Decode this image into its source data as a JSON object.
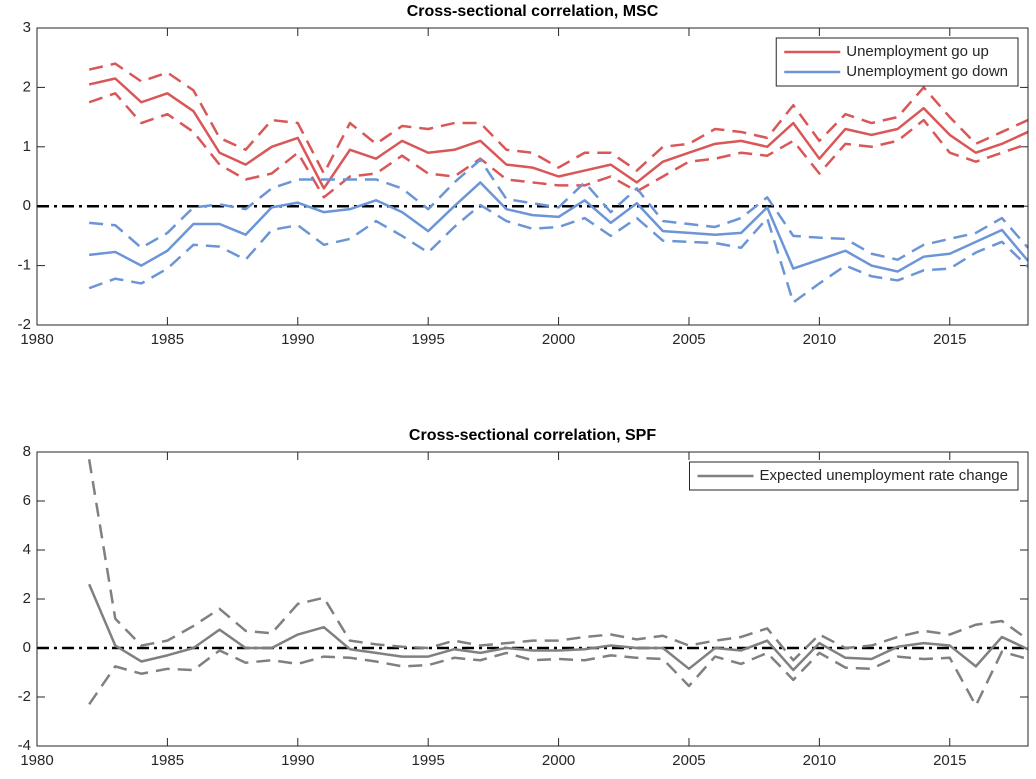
{
  "chart_data": [
    {
      "type": "line",
      "title": "Cross-sectional correlation, MSC",
      "x": [
        1982,
        1983,
        1984,
        1985,
        1986,
        1987,
        1988,
        1989,
        1990,
        1991,
        1992,
        1993,
        1994,
        1995,
        1996,
        1997,
        1998,
        1999,
        2000,
        2001,
        2002,
        2003,
        2004,
        2005,
        2006,
        2007,
        2008,
        2009,
        2010,
        2011,
        2012,
        2013,
        2014,
        2015,
        2016,
        2017,
        2018
      ],
      "xlim": [
        1980,
        2018
      ],
      "xticks": [
        1980,
        1985,
        1990,
        1995,
        2000,
        2005,
        2010,
        2015
      ],
      "ylim": [
        -2,
        3
      ],
      "yticks": [
        -2,
        -1,
        0,
        1,
        2,
        3
      ],
      "reference_line": {
        "value": 0,
        "color": "#000000",
        "style": "dashdot"
      },
      "legend": "top-right",
      "series": [
        {
          "name": "Unemployment go up",
          "color": "#d95757",
          "style": "solid",
          "values": [
            2.05,
            2.15,
            1.75,
            1.9,
            1.6,
            0.9,
            0.7,
            1.0,
            1.15,
            0.3,
            0.95,
            0.8,
            1.1,
            0.9,
            0.95,
            1.1,
            0.7,
            0.65,
            0.5,
            0.6,
            0.7,
            0.4,
            0.75,
            0.9,
            1.05,
            1.1,
            1.0,
            1.4,
            0.8,
            1.3,
            1.2,
            1.3,
            1.65,
            1.2,
            0.9,
            1.05,
            1.25
          ]
        },
        {
          "color": "#d95757",
          "style": "dashed",
          "values": [
            2.3,
            2.4,
            2.1,
            2.25,
            1.95,
            1.15,
            0.95,
            1.45,
            1.4,
            0.55,
            1.4,
            1.05,
            1.35,
            1.3,
            1.4,
            1.4,
            0.95,
            0.9,
            0.65,
            0.9,
            0.9,
            0.6,
            1.0,
            1.05,
            1.3,
            1.25,
            1.15,
            1.7,
            1.1,
            1.55,
            1.4,
            1.5,
            2.0,
            1.5,
            1.05,
            1.25,
            1.45
          ]
        },
        {
          "color": "#d95757",
          "style": "dashed",
          "values": [
            1.75,
            1.9,
            1.4,
            1.55,
            1.25,
            0.7,
            0.45,
            0.55,
            0.9,
            0.15,
            0.5,
            0.55,
            0.85,
            0.55,
            0.5,
            0.8,
            0.45,
            0.4,
            0.35,
            0.35,
            0.5,
            0.25,
            0.5,
            0.75,
            0.8,
            0.9,
            0.85,
            1.1,
            0.55,
            1.05,
            1.0,
            1.1,
            1.45,
            0.9,
            0.75,
            0.9,
            1.05
          ]
        },
        {
          "name": "Unemployment go down",
          "color": "#6b95d6",
          "style": "solid",
          "values": [
            -0.82,
            -0.77,
            -1.0,
            -0.75,
            -0.3,
            -0.3,
            -0.48,
            -0.02,
            0.06,
            -0.1,
            -0.05,
            0.1,
            -0.1,
            -0.42,
            0.0,
            0.4,
            -0.05,
            -0.15,
            -0.18,
            0.1,
            -0.28,
            0.05,
            -0.42,
            -0.45,
            -0.48,
            -0.45,
            -0.02,
            -1.05,
            -0.9,
            -0.75,
            -1.0,
            -1.1,
            -0.85,
            -0.8,
            -0.6,
            -0.4,
            -0.92
          ]
        },
        {
          "color": "#6b95d6",
          "style": "dashed",
          "values": [
            -0.28,
            -0.32,
            -0.7,
            -0.45,
            -0.02,
            0.03,
            -0.05,
            0.3,
            0.45,
            0.45,
            0.45,
            0.45,
            0.3,
            -0.05,
            0.4,
            0.78,
            0.12,
            0.05,
            -0.02,
            0.4,
            -0.1,
            0.3,
            -0.25,
            -0.3,
            -0.35,
            -0.2,
            0.15,
            -0.5,
            -0.53,
            -0.55,
            -0.8,
            -0.9,
            -0.65,
            -0.55,
            -0.45,
            -0.2,
            -0.7
          ]
        },
        {
          "color": "#6b95d6",
          "style": "dashed",
          "values": [
            -1.38,
            -1.22,
            -1.3,
            -1.05,
            -0.65,
            -0.68,
            -0.9,
            -0.4,
            -0.32,
            -0.65,
            -0.55,
            -0.25,
            -0.5,
            -0.78,
            -0.35,
            0.02,
            -0.25,
            -0.38,
            -0.35,
            -0.2,
            -0.5,
            -0.2,
            -0.58,
            -0.6,
            -0.62,
            -0.7,
            -0.2,
            -1.62,
            -1.3,
            -1.0,
            -1.18,
            -1.25,
            -1.08,
            -1.05,
            -0.78,
            -0.6,
            -1.02
          ]
        }
      ]
    },
    {
      "type": "line",
      "title": "Cross-sectional correlation, SPF",
      "x": [
        1982,
        1983,
        1984,
        1985,
        1986,
        1987,
        1988,
        1989,
        1990,
        1991,
        1992,
        1993,
        1994,
        1995,
        1996,
        1997,
        1998,
        1999,
        2000,
        2001,
        2002,
        2003,
        2004,
        2005,
        2006,
        2007,
        2008,
        2009,
        2010,
        2011,
        2012,
        2013,
        2014,
        2015,
        2016,
        2017,
        2018
      ],
      "xlim": [
        1980,
        2018
      ],
      "xticks": [
        1980,
        1985,
        1990,
        1995,
        2000,
        2005,
        2010,
        2015
      ],
      "ylim": [
        -4,
        8
      ],
      "yticks": [
        -4,
        -2,
        0,
        2,
        4,
        6,
        8
      ],
      "reference_line": {
        "value": 0,
        "color": "#000000",
        "style": "dashdot"
      },
      "legend": "top-right",
      "series": [
        {
          "name": "Expected unemployment rate change",
          "color": "#808080",
          "style": "solid",
          "values": [
            2.6,
            0.1,
            -0.55,
            -0.3,
            0.0,
            0.75,
            0.0,
            0.0,
            0.55,
            0.85,
            -0.05,
            -0.2,
            -0.35,
            -0.35,
            -0.05,
            -0.2,
            0.0,
            -0.1,
            -0.1,
            -0.05,
            0.1,
            0.0,
            0.0,
            -0.85,
            0.0,
            -0.1,
            0.3,
            -0.9,
            0.2,
            -0.4,
            -0.45,
            0.05,
            0.2,
            0.1,
            -0.75,
            0.45,
            -0.05
          ]
        },
        {
          "color": "#808080",
          "style": "dashed",
          "values": [
            7.7,
            1.2,
            0.1,
            0.3,
            0.9,
            1.6,
            0.7,
            0.6,
            1.8,
            2.05,
            0.3,
            0.15,
            0.05,
            0.0,
            0.3,
            0.1,
            0.2,
            0.3,
            0.3,
            0.45,
            0.55,
            0.35,
            0.5,
            0.1,
            0.3,
            0.45,
            0.8,
            -0.5,
            0.55,
            0.0,
            0.1,
            0.45,
            0.7,
            0.55,
            0.95,
            1.1,
            0.35
          ]
        },
        {
          "color": "#808080",
          "style": "dashed",
          "values": [
            -2.3,
            -0.75,
            -1.05,
            -0.85,
            -0.9,
            -0.1,
            -0.6,
            -0.5,
            -0.65,
            -0.35,
            -0.4,
            -0.55,
            -0.75,
            -0.7,
            -0.4,
            -0.5,
            -0.2,
            -0.5,
            -0.45,
            -0.5,
            -0.3,
            -0.4,
            -0.45,
            -1.55,
            -0.35,
            -0.65,
            -0.2,
            -1.3,
            -0.2,
            -0.8,
            -0.85,
            -0.35,
            -0.45,
            -0.4,
            -2.35,
            -0.15,
            -0.45
          ]
        }
      ]
    }
  ]
}
